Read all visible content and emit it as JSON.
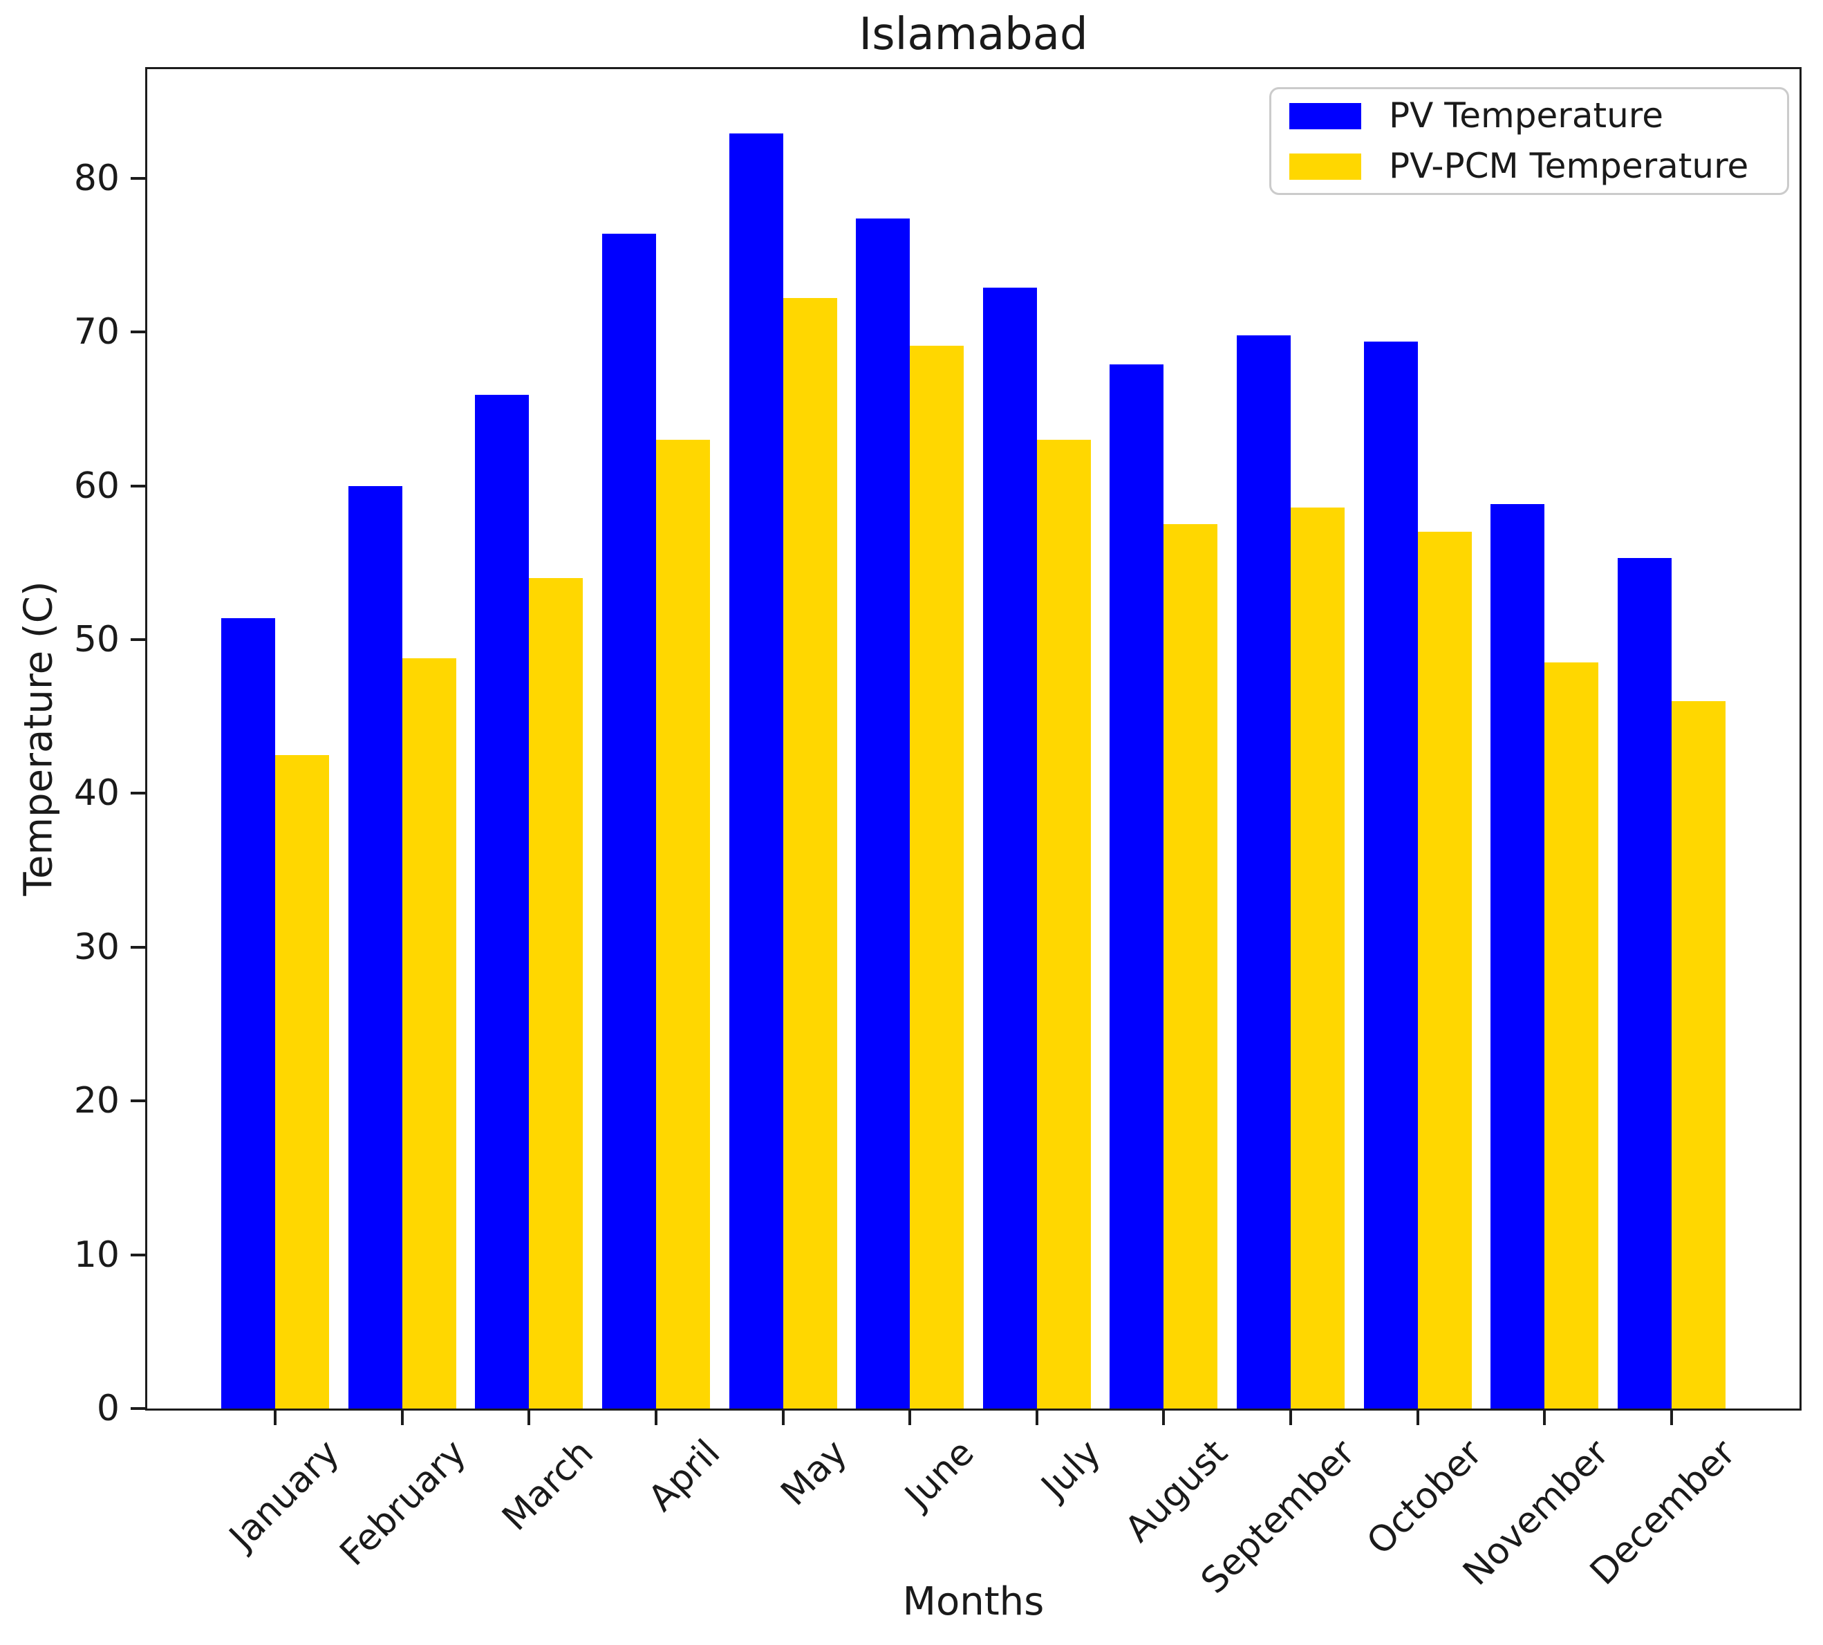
{
  "title": "Islamabad",
  "axes": {
    "x_label": "Months",
    "y_label": "Temperature (C)"
  },
  "chart_data": {
    "type": "bar",
    "title": "Islamabad",
    "xlabel": "Months",
    "ylabel": "Temperature (C)",
    "ylim": [
      0,
      87.1
    ],
    "y_ticks": [
      0,
      10,
      20,
      30,
      40,
      50,
      60,
      70,
      80
    ],
    "grid": false,
    "legend_position": "upper right",
    "categories": [
      "January",
      "February",
      "March",
      "April",
      "May",
      "June",
      "July",
      "August",
      "September",
      "October",
      "November",
      "December"
    ],
    "series": [
      {
        "name": "PV Temperature",
        "color": "#0000FF",
        "values": [
          51.4,
          60.0,
          65.9,
          76.4,
          82.9,
          77.4,
          72.9,
          67.9,
          69.8,
          69.4,
          58.8,
          55.3
        ]
      },
      {
        "name": "PV-PCM Temperature",
        "color": "#FFD700",
        "values": [
          42.5,
          48.8,
          54.0,
          63.0,
          72.2,
          69.1,
          63.0,
          57.5,
          58.6,
          57.0,
          48.5,
          46.0
        ]
      }
    ]
  }
}
